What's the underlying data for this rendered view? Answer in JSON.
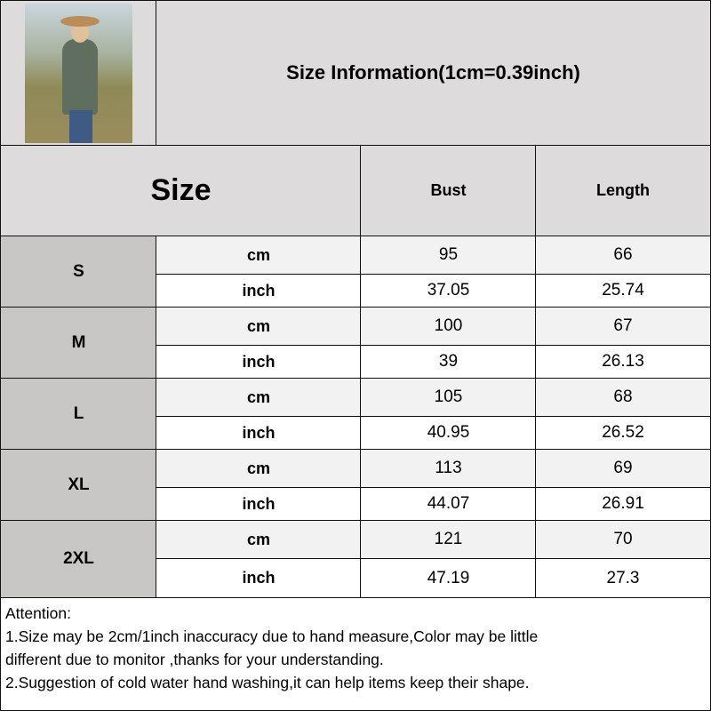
{
  "header": {
    "title": "Size Information(1cm=0.39inch)",
    "photo": "model-wearing-green-henley-top"
  },
  "table": {
    "columns": [
      "Size",
      "Bust",
      "Length"
    ],
    "rows": [
      {
        "size": "S",
        "cm": {
          "unit": "cm",
          "bust": "95",
          "length": "66"
        },
        "inch": {
          "unit": "inch",
          "bust": "37.05",
          "length": "25.74"
        }
      },
      {
        "size": "M",
        "cm": {
          "unit": "cm",
          "bust": "100",
          "length": "67"
        },
        "inch": {
          "unit": "inch",
          "bust": "39",
          "length": "26.13"
        }
      },
      {
        "size": "L",
        "cm": {
          "unit": "cm",
          "bust": "105",
          "length": "68"
        },
        "inch": {
          "unit": "inch",
          "bust": "40.95",
          "length": "26.52"
        }
      },
      {
        "size": "XL",
        "cm": {
          "unit": "cm",
          "bust": "113",
          "length": "69"
        },
        "inch": {
          "unit": "inch",
          "bust": "44.07",
          "length": "26.91"
        }
      },
      {
        "size": "2XL",
        "cm": {
          "unit": "cm",
          "bust": "121",
          "length": "70"
        },
        "inch": {
          "unit": "inch",
          "bust": "47.19",
          "length": "27.3"
        }
      }
    ]
  },
  "attention": {
    "heading": "Attention:",
    "line1": "1.Size may be 2cm/1inch inaccuracy due to hand measure,Color may be little",
    "line2": "different due to monitor ,thanks for your understanding.",
    "line3": "2.Suggestion of cold water hand washing,it can help items keep their shape."
  }
}
